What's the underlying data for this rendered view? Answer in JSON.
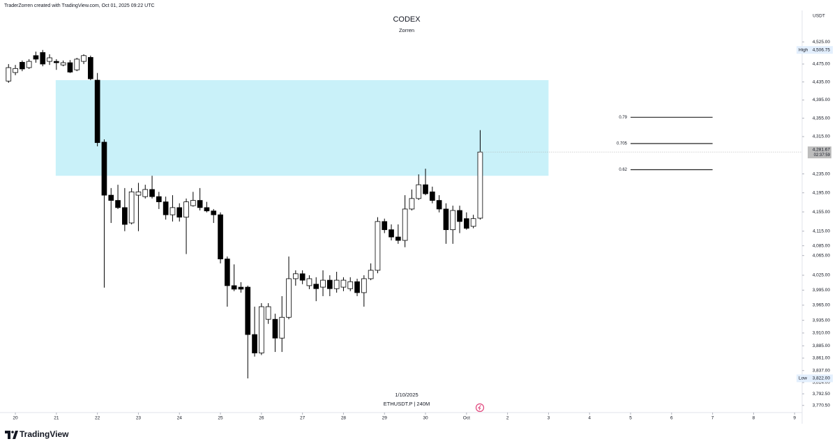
{
  "header": "TraderZorren created with TradingView.com, Oct 01, 2025 09:22 UTC",
  "footer_logo": "TradingView",
  "chart_data": {
    "type": "candlestick",
    "title": "CODEX",
    "subtitle": "Zorren",
    "currency": "USDT",
    "watermark_date": "1/10/2025",
    "symbol": "ETHUSDT.P | 240M",
    "log_scale": true,
    "up_color": "#ffffff",
    "down_color": "#000000",
    "open": [
      4437,
      4456,
      4479,
      4467,
      4494,
      4501,
      4481,
      4481,
      4473,
      4478,
      4462,
      4481,
      4490,
      4439,
      4303,
      4190,
      4179,
      4164,
      4132,
      4190,
      4187,
      4202,
      4187,
      4176,
      4149,
      4164,
      4144,
      4168,
      4179,
      4164,
      4157,
      4149,
      4058,
      4004,
      4001,
      4001,
      3907,
      3871,
      3937,
      3937,
      3900,
      3941,
      4018,
      4028,
      4004,
      4007,
      4001,
      4015,
      3998,
      4001,
      3998,
      4012,
      3990,
      4018,
      4035,
      4135,
      4118,
      4103,
      4096,
      4161,
      4183,
      4212,
      4197,
      4179,
      4161,
      4118,
      4158,
      4141,
      4125,
      4142
    ],
    "high": [
      4475,
      4473,
      4483,
      4486,
      4503,
      4506.75,
      4497,
      4486,
      4483,
      4484,
      4489,
      4497,
      4494,
      4455,
      4309,
      4205,
      4212,
      4205,
      4205,
      4216,
      4212,
      4231,
      4197,
      4187,
      4190,
      4173,
      4183,
      4197,
      4205,
      4176,
      4161,
      4154,
      4063,
      4047,
      4011,
      4004,
      3962,
      3969,
      3969,
      3948,
      3983,
      4063,
      4035,
      4035,
      4025,
      4021,
      4035,
      4025,
      4032,
      4021,
      4021,
      4018,
      4025,
      4049,
      4144,
      4141,
      4129,
      4129,
      4190,
      4202,
      4234,
      4246,
      4208,
      4190,
      4173,
      4168,
      4168,
      4154,
      4149,
      4329
    ],
    "low": [
      4433,
      4450,
      4459,
      4464,
      4478,
      4470,
      4473,
      4462,
      4470,
      4455,
      4459,
      4475,
      4439,
      4294,
      4000,
      4132,
      4161,
      4115,
      4129,
      4115,
      4183,
      4183,
      4161,
      4139,
      4135,
      4135,
      4068,
      4166,
      4158,
      4154,
      4132,
      4049,
      3962,
      3993,
      3990,
      3822,
      3864,
      3867,
      3928,
      3873,
      3873,
      3937,
      4004,
      4007,
      3997,
      3973,
      3983,
      3983,
      3990,
      3993,
      3993,
      3983,
      3962,
      4015,
      4029,
      4111,
      4096,
      4089,
      4082,
      4158,
      4180,
      4190,
      4173,
      4154,
      4089,
      4089,
      4111,
      4118,
      4121,
      4139
    ],
    "close": [
      4467,
      4465,
      4464,
      4481,
      4486,
      4475,
      4489,
      4478,
      4478,
      4457,
      4486,
      4494,
      4442,
      4302,
      4190,
      4179,
      4164,
      4129,
      4197,
      4197,
      4202,
      4187,
      4176,
      4149,
      4164,
      4144,
      4176,
      4179,
      4164,
      4157,
      4149,
      4058,
      4004,
      3997,
      3997,
      3907,
      3871,
      3962,
      3962,
      3900,
      3941,
      4018,
      4028,
      4015,
      4018,
      3998,
      4015,
      3998,
      4015,
      4015,
      4012,
      3990,
      4018,
      4035,
      4135,
      4118,
      4103,
      4096,
      4161,
      4183,
      4212,
      4193,
      4179,
      4161,
      4118,
      4158,
      4135,
      4121,
      4141,
      4281.67
    ],
    "xlim": [
      -1.25,
      116.1
    ],
    "xticks": [
      {
        "value": 1,
        "label": "20"
      },
      {
        "value": 7,
        "label": "21"
      },
      {
        "value": 13,
        "label": "22"
      },
      {
        "value": 19,
        "label": "23"
      },
      {
        "value": 25,
        "label": "24"
      },
      {
        "value": 31,
        "label": "25"
      },
      {
        "value": 37,
        "label": "26"
      },
      {
        "value": 43,
        "label": "27"
      },
      {
        "value": 49,
        "label": "28"
      },
      {
        "value": 55,
        "label": "29"
      },
      {
        "value": 61,
        "label": "30"
      },
      {
        "value": 67,
        "label": "Oct"
      },
      {
        "value": 73,
        "label": "2"
      },
      {
        "value": 79,
        "label": "3"
      },
      {
        "value": 85,
        "label": "4"
      },
      {
        "value": 91,
        "label": "5"
      },
      {
        "value": 97,
        "label": "6"
      },
      {
        "value": 103,
        "label": "7"
      },
      {
        "value": 109,
        "label": "8"
      },
      {
        "value": 115,
        "label": "9"
      }
    ],
    "ylim": [
      3757,
      4597
    ],
    "yticks": [
      {
        "value": 4525,
        "label": "4,525.00"
      },
      {
        "value": 4475,
        "label": "4,475.00"
      },
      {
        "value": 4435,
        "label": "4,435.00"
      },
      {
        "value": 4395,
        "label": "4,395.00"
      },
      {
        "value": 4355,
        "label": "4,355.00"
      },
      {
        "value": 4315,
        "label": "4,315.00"
      },
      {
        "value": 4235,
        "label": "4,235.00"
      },
      {
        "value": 4195,
        "label": "4,195.00"
      },
      {
        "value": 4155,
        "label": "4,155.00"
      },
      {
        "value": 4115,
        "label": "4,115.00"
      },
      {
        "value": 4085,
        "label": "4,085.00"
      },
      {
        "value": 4065,
        "label": "4,065.00"
      },
      {
        "value": 4025,
        "label": "4,025.00"
      },
      {
        "value": 3995,
        "label": "3,995.00"
      },
      {
        "value": 3965,
        "label": "3,965.00"
      },
      {
        "value": 3935,
        "label": "3,935.00"
      },
      {
        "value": 3910,
        "label": "3,910.00"
      },
      {
        "value": 3885,
        "label": "3,885.00"
      },
      {
        "value": 3861,
        "label": "3,861.00"
      },
      {
        "value": 3837,
        "label": "3,837.00"
      },
      {
        "value": 3814,
        "label": "3,814.00"
      },
      {
        "value": 3792.5,
        "label": "3,792.50"
      },
      {
        "value": 3770.5,
        "label": "3,770.50"
      }
    ],
    "high_marker": {
      "name": "High",
      "value": 4506.75,
      "label": "4,506.75"
    },
    "low_marker": {
      "name": "Low",
      "value": 3822,
      "label": "3,822.00"
    },
    "last_price": {
      "value": 4281.67,
      "label": "4,281.67",
      "countdown": "02:37:59"
    },
    "zone": {
      "top": 4439,
      "bottom": 4231,
      "start": 6.9,
      "end": 79,
      "color": "#c9f1f9"
    },
    "fib_levels": [
      {
        "label": "0.79",
        "value": 4357
      },
      {
        "label": "0.705",
        "value": 4300
      },
      {
        "label": "0.62",
        "value": 4244
      }
    ],
    "fib_range": [
      91,
      103
    ]
  }
}
